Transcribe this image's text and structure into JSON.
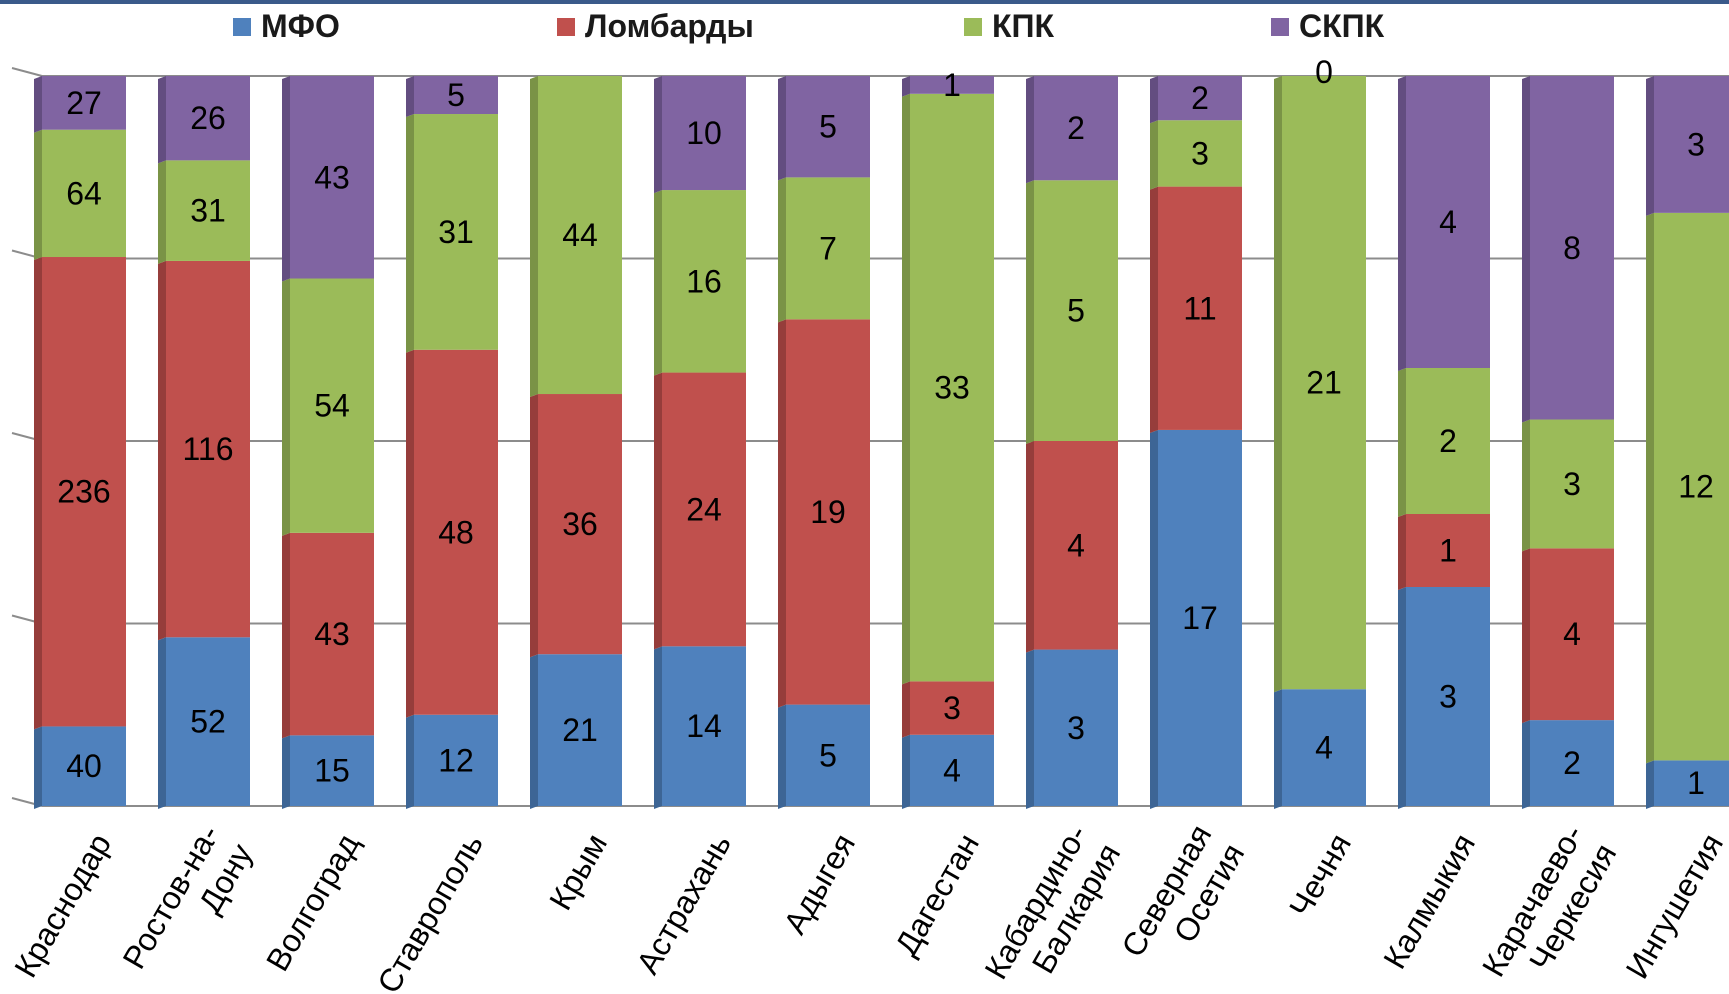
{
  "chart_data": {
    "type": "bar",
    "stacked": true,
    "percent_stacked": true,
    "categories": [
      "Краснодар",
      "Ростов-на-Дону",
      "Волгоград",
      "Ставрополь",
      "Крым",
      "Астрахань",
      "Адыгея",
      "Дагестан",
      "Кабардино-Балкария",
      "Северная Осетия",
      "Чечня",
      "Калмыкия",
      "Карачаево-Черкесия",
      "Ингушетия"
    ],
    "tick_labels": [
      [
        "Краснодар"
      ],
      [
        "Ростов-на-",
        "Дону"
      ],
      [
        "Волгоград"
      ],
      [
        "Ставрополь"
      ],
      [
        "Крым"
      ],
      [
        "Астрахань"
      ],
      [
        "Адыгея"
      ],
      [
        "Дагестан"
      ],
      [
        "Кабардино-",
        "Балкария"
      ],
      [
        "Северная",
        "Осетия"
      ],
      [
        "Чечня"
      ],
      [
        "Калмыкия"
      ],
      [
        "Карачаево-",
        "Черкесия"
      ],
      [
        "Ингушетия"
      ]
    ],
    "series": [
      {
        "name": "МФО",
        "color": "#4f81bd",
        "values": [
          40,
          52,
          15,
          12,
          21,
          14,
          5,
          4,
          3,
          17,
          4,
          3,
          2,
          1
        ]
      },
      {
        "name": "Ломбарды",
        "color": "#c0504d",
        "values": [
          236,
          116,
          43,
          48,
          36,
          24,
          19,
          3,
          4,
          11,
          0,
          1,
          4,
          0
        ]
      },
      {
        "name": "КПК",
        "color": "#9bbb59",
        "values": [
          64,
          31,
          54,
          31,
          44,
          16,
          7,
          33,
          5,
          3,
          21,
          2,
          3,
          12
        ]
      },
      {
        "name": "СКПК",
        "color": "#8064a2",
        "values": [
          27,
          26,
          43,
          5,
          0,
          10,
          5,
          1,
          2,
          2,
          0,
          4,
          8,
          3
        ]
      }
    ],
    "data_labels": [
      [
        "40",
        "236",
        "64",
        "27"
      ],
      [
        "52",
        "116",
        "31",
        "26"
      ],
      [
        "15",
        "43",
        "54",
        "43"
      ],
      [
        "12",
        "48",
        "31",
        "5"
      ],
      [
        "21",
        "36",
        "44",
        ""
      ],
      [
        "14",
        "24",
        "16",
        "10"
      ],
      [
        "5",
        "19",
        "7",
        "5"
      ],
      [
        "4",
        "3",
        "33",
        "1"
      ],
      [
        "3",
        "4",
        "5",
        "2"
      ],
      [
        "17",
        "11",
        "3",
        "2"
      ],
      [
        "4",
        "",
        "21",
        "0"
      ],
      [
        "3",
        "1",
        "2",
        "4"
      ],
      [
        "2",
        "4",
        "3",
        "8"
      ],
      [
        "1",
        "",
        "12",
        "3"
      ]
    ],
    "legend_position": "top",
    "grid": true
  }
}
